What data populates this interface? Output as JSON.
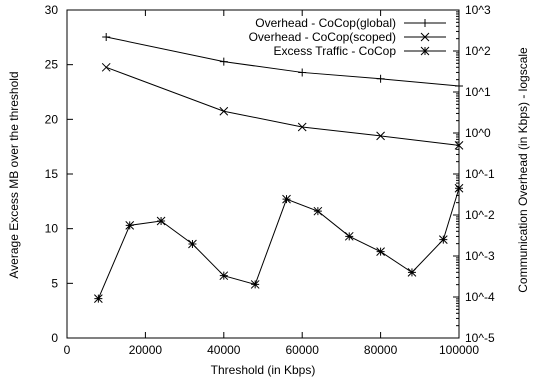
{
  "chart_data": {
    "type": "line",
    "title": "",
    "xlabel": "Threshold (in Kbps)",
    "ylabel": "Average Excess MB over the threshold",
    "y2label": "Communication Overhead (in Kbps) - logscale",
    "xlim": [
      0,
      100000
    ],
    "ylim": [
      0,
      30
    ],
    "y2lim_log10": [
      -5,
      3
    ],
    "x_ticks": [
      0,
      20000,
      40000,
      60000,
      80000,
      100000
    ],
    "x_tick_labels": [
      "0",
      "20000",
      "40000",
      "60000",
      "80000",
      "100000"
    ],
    "y_ticks": [
      0,
      5,
      10,
      15,
      20,
      25,
      30
    ],
    "y_tick_labels": [
      "0",
      "5",
      "10",
      "15",
      "20",
      "25",
      "30"
    ],
    "y2_ticks_log10": [
      -5,
      -4,
      -3,
      -2,
      -1,
      0,
      1,
      2,
      3
    ],
    "y2_tick_labels": [
      "10^-5",
      "10^-4",
      "10^-3",
      "10^-2",
      "10^-1",
      "10^0",
      "10^1",
      "10^2",
      "10^3"
    ],
    "grid": false,
    "legend_position": "top-right",
    "series": [
      {
        "name": "Overhead - CoCop(global)",
        "axis": "right-log",
        "marker": "plus",
        "x": [
          10000,
          40000,
          60000,
          80000,
          100000
        ],
        "y": [
          220,
          55,
          30,
          21,
          14
        ]
      },
      {
        "name": "Overhead - CoCop(scoped)",
        "axis": "right-log",
        "marker": "cross",
        "x": [
          10000,
          40000,
          60000,
          80000,
          100000
        ],
        "y": [
          40,
          3.4,
          1.4,
          0.85,
          0.5
        ]
      },
      {
        "name": "Excess Traffic - CoCop",
        "axis": "left",
        "marker": "star",
        "x": [
          8000,
          16000,
          24000,
          32000,
          40000,
          48000,
          56000,
          64000,
          72000,
          80000,
          88000,
          96000,
          100000
        ],
        "y": [
          3.6,
          10.3,
          10.7,
          8.6,
          5.7,
          4.9,
          12.7,
          11.6,
          9.3,
          7.9,
          6.0,
          9.0,
          13.7
        ]
      }
    ]
  }
}
